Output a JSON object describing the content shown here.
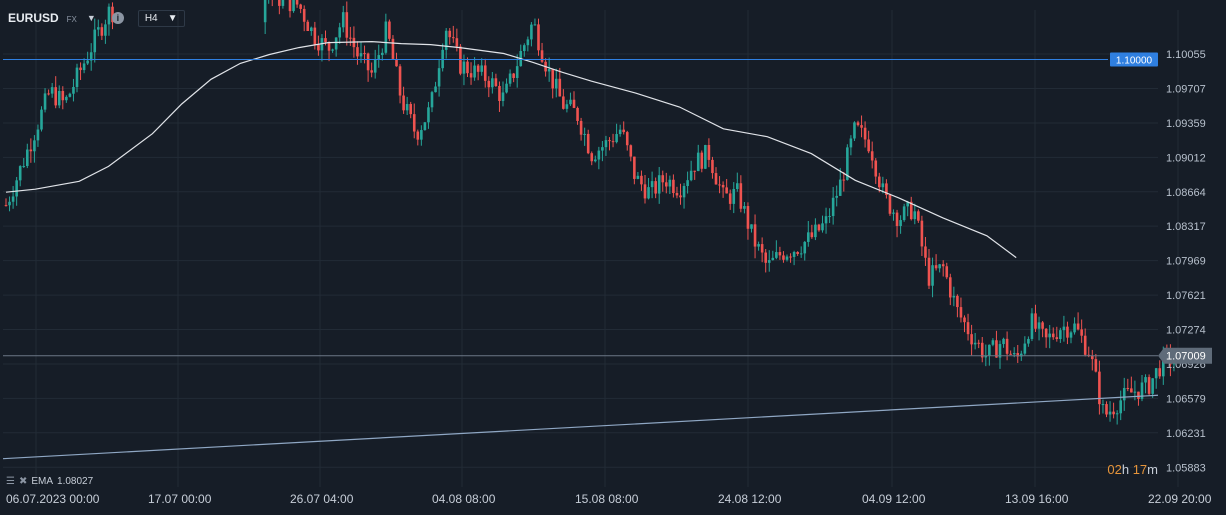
{
  "toolbar": {
    "symbol": "EURUSD",
    "market": "FX",
    "timeframe": "H4",
    "symbol_caret": "▼",
    "tf_caret": "▼",
    "info_icon": "i"
  },
  "indicator_legend": {
    "label": "EMA",
    "value": "1.08027"
  },
  "candle_timer": {
    "hours": "02",
    "hours_unit": "h",
    "minutes": "17",
    "minutes_unit": "m"
  },
  "colors": {
    "background": "#161d27",
    "up": "#26a69a",
    "down": "#ef5350",
    "ema": "#e0e3e8",
    "level_line": "#2f7fe0",
    "trend_line": "#8fa7c4",
    "grid": "#222b36"
  },
  "chart_data": {
    "type": "candlestick",
    "symbol": "EURUSD",
    "timeframe": "H4",
    "y_range": [
      1.057,
      1.1075
    ],
    "price_ticks": [
      "1.10055",
      "1.09707",
      "1.09359",
      "1.09012",
      "1.08664",
      "1.08317",
      "1.07969",
      "1.07621",
      "1.07274",
      "1.06926",
      "1.06579",
      "1.06231",
      "1.05883"
    ],
    "time_ticks": [
      {
        "date": "06.07.2023",
        "time": "00:00"
      },
      {
        "date": "17.07",
        "time": "00:00"
      },
      {
        "date": "26.07",
        "time": "04:00"
      },
      {
        "date": "04.08",
        "time": "08:00"
      },
      {
        "date": "15.08",
        "time": "08:00"
      },
      {
        "date": "24.08",
        "time": "12:00"
      },
      {
        "date": "04.09",
        "time": "12:00"
      },
      {
        "date": "13.09",
        "time": "16:00"
      },
      {
        "date": "22.09",
        "time": "20:00"
      }
    ],
    "horizontal_level": {
      "price": 1.1,
      "label": "1.10000"
    },
    "current_price": {
      "price": 1.07009,
      "label": "1.07009"
    },
    "trend_line": {
      "from": {
        "time": "06.07.2023 00:00",
        "price": 1.0597
      },
      "to": {
        "time": "22.09 20:00",
        "price": 1.0661
      }
    },
    "ema": {
      "label": "EMA",
      "last_value": 1.08027,
      "points": [
        {
          "time": "06.07 00:00",
          "value": 1.0866
        },
        {
          "time": "08.07",
          "value": 1.0869
        },
        {
          "time": "11.07",
          "value": 1.0877
        },
        {
          "time": "13.07",
          "value": 1.0892
        },
        {
          "time": "16.07",
          "value": 1.0925
        },
        {
          "time": "18.07",
          "value": 1.0955
        },
        {
          "time": "20.07",
          "value": 1.098
        },
        {
          "time": "22.07",
          "value": 1.0996
        },
        {
          "time": "24.07",
          "value": 1.1005
        },
        {
          "time": "26.07",
          "value": 1.1012
        },
        {
          "time": "28.07",
          "value": 1.1017
        },
        {
          "time": "31.07",
          "value": 1.1018
        },
        {
          "time": "02.08",
          "value": 1.1016
        },
        {
          "time": "04.08",
          "value": 1.1015
        },
        {
          "time": "06.08",
          "value": 1.1012
        },
        {
          "time": "09.08",
          "value": 1.1006
        },
        {
          "time": "11.08",
          "value": 1.0997
        },
        {
          "time": "13.08",
          "value": 1.0987
        },
        {
          "time": "15.08",
          "value": 1.0978
        },
        {
          "time": "18.08",
          "value": 1.0966
        },
        {
          "time": "21.08",
          "value": 1.0952
        },
        {
          "time": "24.08",
          "value": 1.093
        },
        {
          "time": "27.08",
          "value": 1.0922
        },
        {
          "time": "30.08",
          "value": 1.0905
        },
        {
          "time": "02.09",
          "value": 1.0878
        },
        {
          "time": "05.09",
          "value": 1.086
        },
        {
          "time": "08.09",
          "value": 1.084
        },
        {
          "time": "11.09",
          "value": 1.0822
        },
        {
          "time": "13.09",
          "value": 1.08
        }
      ]
    },
    "price_path": [
      {
        "time": "06.07",
        "price": 1.0853
      },
      {
        "time": "07.07",
        "price": 1.089
      },
      {
        "time": "09.07",
        "price": 1.0968
      },
      {
        "time": "10.07",
        "price": 1.0955
      },
      {
        "time": "12.07",
        "price": 1.1018
      },
      {
        "time": "13.07",
        "price": 1.1048
      },
      {
        "time": "24.07",
        "price": 1.1065
      },
      {
        "time": "26.07",
        "price": 1.1055
      },
      {
        "time": "27.07",
        "price": 1.1025
      },
      {
        "time": "28.07",
        "price": 1.101
      },
      {
        "time": "29.07",
        "price": 1.104
      },
      {
        "time": "30.07",
        "price": 1.1005
      },
      {
        "time": "31.07",
        "price": 1.0985
      },
      {
        "time": "01.08",
        "price": 1.103
      },
      {
        "time": "02.08",
        "price": 1.096
      },
      {
        "time": "03.08",
        "price": 1.0925
      },
      {
        "time": "04.08",
        "price": 1.095
      },
      {
        "time": "05.08",
        "price": 1.1035
      },
      {
        "time": "06.08",
        "price": 1.0995
      },
      {
        "time": "08.08",
        "price": 1.098
      },
      {
        "time": "09.08",
        "price": 1.096
      },
      {
        "time": "10.08",
        "price": 1.1
      },
      {
        "time": "11.08",
        "price": 1.1038
      },
      {
        "time": "12.08",
        "price": 1.099
      },
      {
        "time": "13.08",
        "price": 1.0955
      },
      {
        "time": "14.08",
        "price": 1.0945
      },
      {
        "time": "15.08",
        "price": 1.0905
      },
      {
        "time": "16.08",
        "price": 1.0915
      },
      {
        "time": "17.08",
        "price": 1.093
      },
      {
        "time": "18.08",
        "price": 1.088
      },
      {
        "time": "19.08",
        "price": 1.0865
      },
      {
        "time": "20.08",
        "price": 1.088
      },
      {
        "time": "21.08",
        "price": 1.087
      },
      {
        "time": "22.08",
        "price": 1.0895
      },
      {
        "time": "23.08",
        "price": 1.0905
      },
      {
        "time": "24.08",
        "price": 1.086
      },
      {
        "time": "25.08",
        "price": 1.0865
      },
      {
        "time": "26.08",
        "price": 1.082
      },
      {
        "time": "27.08",
        "price": 1.079
      },
      {
        "time": "28.08",
        "price": 1.0805
      },
      {
        "time": "29.08",
        "price": 1.081
      },
      {
        "time": "30.08",
        "price": 1.082
      },
      {
        "time": "31.08",
        "price": 1.0835
      },
      {
        "time": "01.09",
        "price": 1.0875
      },
      {
        "time": "02.09",
        "price": 1.093
      },
      {
        "time": "03.09",
        "price": 1.0915
      },
      {
        "time": "04.09",
        "price": 1.086
      },
      {
        "time": "05.09",
        "price": 1.084
      },
      {
        "time": "06.09",
        "price": 1.085
      },
      {
        "time": "07.09",
        "price": 1.078
      },
      {
        "time": "08.09",
        "price": 1.079
      },
      {
        "time": "09.09",
        "price": 1.0745
      },
      {
        "time": "10.09",
        "price": 1.072
      },
      {
        "time": "11.09",
        "price": 1.07
      },
      {
        "time": "12.09",
        "price": 1.0715
      },
      {
        "time": "13.09",
        "price": 1.0695
      },
      {
        "time": "14.09",
        "price": 1.0735
      },
      {
        "time": "15.09",
        "price": 1.0715
      },
      {
        "time": "16.09",
        "price": 1.073
      },
      {
        "time": "17.09",
        "price": 1.073
      },
      {
        "time": "18.09",
        "price": 1.0705
      },
      {
        "time": "19.09",
        "price": 1.064
      },
      {
        "time": "20.09",
        "price": 1.0655
      },
      {
        "time": "21.09",
        "price": 1.0665
      },
      {
        "time": "22.09",
        "price": 1.067
      },
      {
        "time": "23.09",
        "price": 1.0695
      },
      {
        "time": "24.09",
        "price": 1.07
      }
    ]
  }
}
